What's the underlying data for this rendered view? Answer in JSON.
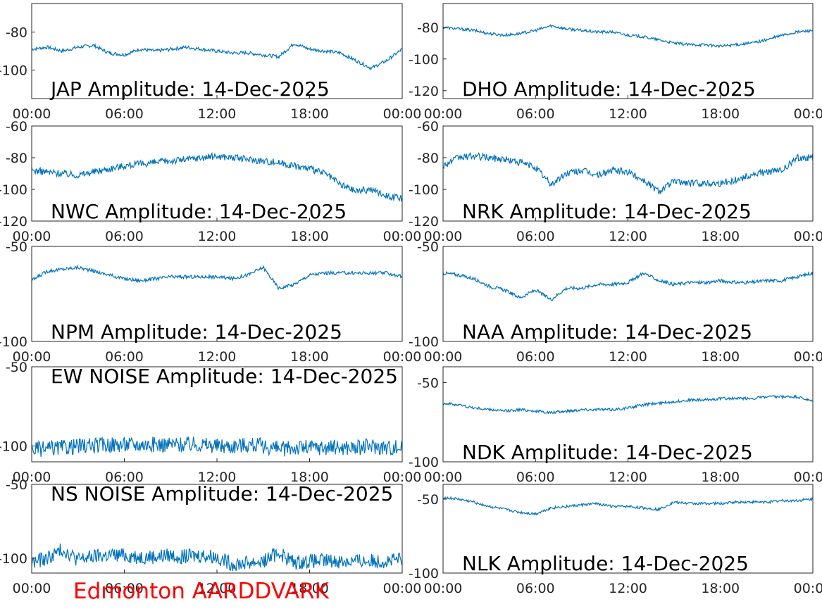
{
  "footer_label": "Edmonton AARDDVARK",
  "trace_color": "#0072BD",
  "x_tick_labels": [
    "00:00",
    "06:00",
    "12:00",
    "18:00",
    "00:00"
  ],
  "chart_data": [
    {
      "type": "line",
      "title": "JAP Amplitude: 14-Dec-2025",
      "ylim": [
        -115,
        -65
      ],
      "yticks": [
        -80,
        -100
      ],
      "x": [
        0,
        1,
        2,
        3,
        4,
        5,
        6,
        7,
        8,
        9,
        10,
        11,
        12,
        13,
        14,
        15,
        16,
        17,
        18,
        19,
        20,
        21,
        22,
        23,
        24
      ],
      "y": [
        -89,
        -88,
        -90,
        -88,
        -87,
        -91,
        -92,
        -89,
        -90,
        -89,
        -88,
        -89,
        -90,
        -91,
        -91,
        -92,
        -93,
        -86,
        -89,
        -90,
        -91,
        -95,
        -99,
        -95,
        -89
      ]
    },
    {
      "type": "line",
      "title": "DHO Amplitude: 14-Dec-2025",
      "ylim": [
        -125,
        -65
      ],
      "yticks": [
        -80,
        -100,
        -120
      ],
      "x": [
        0,
        1,
        2,
        3,
        4,
        5,
        6,
        7,
        8,
        9,
        10,
        11,
        12,
        13,
        14,
        15,
        16,
        17,
        18,
        19,
        20,
        21,
        22,
        23,
        24
      ],
      "y": [
        -80,
        -81,
        -82,
        -84,
        -85,
        -84,
        -82,
        -79,
        -81,
        -82,
        -83,
        -83,
        -85,
        -86,
        -88,
        -90,
        -91,
        -91,
        -92,
        -91,
        -90,
        -88,
        -85,
        -83,
        -82
      ]
    },
    {
      "type": "line",
      "title": "NWC Amplitude: 14-Dec-2025",
      "ylim": [
        -120,
        -60
      ],
      "yticks": [
        -60,
        -80,
        -100,
        -120
      ],
      "x": [
        0,
        1,
        2,
        3,
        4,
        5,
        6,
        7,
        8,
        9,
        10,
        11,
        12,
        13,
        14,
        15,
        16,
        17,
        18,
        19,
        20,
        21,
        22,
        23,
        24
      ],
      "y": [
        -88,
        -89,
        -90,
        -91,
        -89,
        -87,
        -85,
        -84,
        -83,
        -82,
        -81,
        -80,
        -79,
        -80,
        -81,
        -82,
        -83,
        -85,
        -87,
        -90,
        -97,
        -101,
        -100,
        -104,
        -106
      ]
    },
    {
      "type": "line",
      "title": "NRK Amplitude: 14-Dec-2025",
      "ylim": [
        -120,
        -60
      ],
      "yticks": [
        -60,
        -80,
        -100,
        -120
      ],
      "x": [
        0,
        1,
        2,
        3,
        4,
        5,
        6,
        7,
        8,
        9,
        10,
        11,
        12,
        13,
        14,
        15,
        16,
        17,
        18,
        19,
        20,
        21,
        22,
        23,
        24
      ],
      "y": [
        -85,
        -80,
        -79,
        -80,
        -81,
        -83,
        -86,
        -97,
        -90,
        -88,
        -91,
        -88,
        -89,
        -94,
        -101,
        -95,
        -96,
        -96,
        -96,
        -94,
        -91,
        -89,
        -88,
        -80,
        -80
      ]
    },
    {
      "type": "line",
      "title": "NPM Amplitude: 14-Dec-2025",
      "ylim": [
        -100,
        -50
      ],
      "yticks": [
        -50,
        -100
      ],
      "x": [
        0,
        1,
        2,
        3,
        4,
        5,
        6,
        7,
        8,
        9,
        10,
        11,
        12,
        13,
        14,
        15,
        16,
        17,
        18,
        19,
        20,
        21,
        22,
        23,
        24
      ],
      "y": [
        -68,
        -63,
        -62,
        -61,
        -63,
        -65,
        -67,
        -68,
        -67,
        -66,
        -66,
        -66,
        -66,
        -67,
        -65,
        -61,
        -72,
        -70,
        -65,
        -64,
        -64,
        -64,
        -64,
        -64,
        -66
      ]
    },
    {
      "type": "line",
      "title": "NAA Amplitude: 14-Dec-2025",
      "ylim": [
        -100,
        -50
      ],
      "yticks": [
        -50,
        -100
      ],
      "x": [
        0,
        1,
        2,
        3,
        4,
        5,
        6,
        7,
        8,
        9,
        10,
        11,
        12,
        13,
        14,
        15,
        16,
        17,
        18,
        19,
        20,
        21,
        22,
        23,
        24
      ],
      "y": [
        -64,
        -65,
        -67,
        -71,
        -73,
        -77,
        -73,
        -78,
        -72,
        -72,
        -70,
        -70,
        -69,
        -64,
        -68,
        -70,
        -69,
        -69,
        -68,
        -69,
        -69,
        -68,
        -68,
        -66,
        -64
      ]
    },
    {
      "type": "line",
      "title": "EW NOISE Amplitude: 14-Dec-2025",
      "ylim": [
        -110,
        -50
      ],
      "yticks": [
        -50,
        -100
      ],
      "x": [
        0,
        1,
        2,
        3,
        4,
        5,
        6,
        7,
        8,
        9,
        10,
        11,
        12,
        13,
        14,
        15,
        16,
        17,
        18,
        19,
        20,
        21,
        22,
        23,
        24
      ],
      "y": [
        -102,
        -102,
        -101,
        -100,
        -100,
        -99,
        -99,
        -99,
        -99,
        -99,
        -99,
        -99,
        -100,
        -100,
        -99,
        -100,
        -102,
        -101,
        -101,
        -101,
        -101,
        -101,
        -100,
        -101,
        -101
      ]
    },
    {
      "type": "line",
      "title": "NDK Amplitude: 14-Dec-2025",
      "ylim": [
        -100,
        -40
      ],
      "yticks": [
        -50,
        -100
      ],
      "x": [
        0,
        1,
        2,
        3,
        4,
        5,
        6,
        7,
        8,
        9,
        10,
        11,
        12,
        13,
        14,
        15,
        16,
        17,
        18,
        19,
        20,
        21,
        22,
        23,
        24
      ],
      "y": [
        -63,
        -64,
        -66,
        -67,
        -68,
        -67,
        -68,
        -69,
        -68,
        -67,
        -67,
        -67,
        -66,
        -64,
        -63,
        -62,
        -61,
        -61,
        -60,
        -60,
        -60,
        -59,
        -59,
        -59,
        -62
      ]
    },
    {
      "type": "line",
      "title": "NS NOISE Amplitude: 14-Dec-2025",
      "ylim": [
        -110,
        -50
      ],
      "yticks": [
        -50,
        -100
      ],
      "x": [
        0,
        1,
        2,
        3,
        4,
        5,
        6,
        7,
        8,
        9,
        10,
        11,
        12,
        13,
        14,
        15,
        16,
        17,
        18,
        19,
        20,
        21,
        22,
        23,
        24
      ],
      "y": [
        -103,
        -100,
        -94,
        -101,
        -99,
        -98,
        -98,
        -99,
        -99,
        -98,
        -99,
        -98,
        -99,
        -104,
        -103,
        -102,
        -96,
        -103,
        -102,
        -102,
        -102,
        -102,
        -102,
        -102,
        -101
      ]
    },
    {
      "type": "line",
      "title": "NLK Amplitude: 14-Dec-2025",
      "ylim": [
        -100,
        -40
      ],
      "yticks": [
        -50,
        -100
      ],
      "x": [
        0,
        1,
        2,
        3,
        4,
        5,
        6,
        7,
        8,
        9,
        10,
        11,
        12,
        13,
        14,
        15,
        16,
        17,
        18,
        19,
        20,
        21,
        22,
        23,
        24
      ],
      "y": [
        -49,
        -50,
        -52,
        -55,
        -57,
        -59,
        -60,
        -56,
        -55,
        -54,
        -53,
        -55,
        -55,
        -56,
        -57,
        -52,
        -53,
        -53,
        -53,
        -52,
        -52,
        -52,
        -51,
        -51,
        -50
      ]
    }
  ]
}
